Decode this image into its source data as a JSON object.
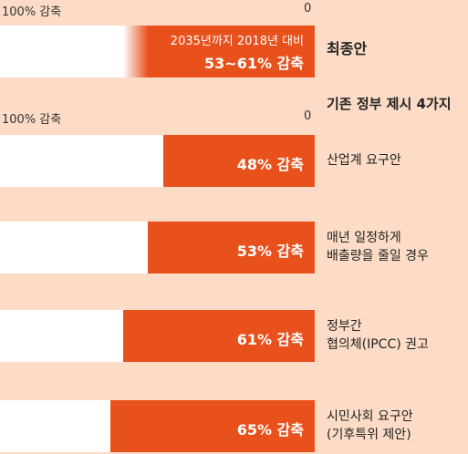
{
  "chart_data": {
    "type": "bar",
    "orientation": "horizontal",
    "unit": "%",
    "axis": {
      "min_label": "100% 감축",
      "max_label": "0"
    },
    "section_heading": "기존 정부 제시 4가지",
    "header": {
      "label": "최종안",
      "subtitle": "2035년까지 2018년 대비",
      "value_label": "53~61% 감축",
      "range": [
        53,
        61
      ]
    },
    "bars": [
      {
        "label_lines": [
          "산업계 요구안"
        ],
        "value": 48,
        "value_label": "48% 감축"
      },
      {
        "label_lines": [
          "매년 일정하게",
          "배출량을 줄일 경우"
        ],
        "value": 53,
        "value_label": "53% 감축"
      },
      {
        "label_lines": [
          "정부간",
          "협의체(IPCC) 권고"
        ],
        "value": 61,
        "value_label": "61% 감축"
      },
      {
        "label_lines": [
          "시민사회 요구안",
          "(기후특위 제안)"
        ],
        "value": 65,
        "value_label": "65% 감축"
      }
    ],
    "colors": {
      "bar": "#e8501c",
      "track": "#ffffff",
      "background": "#fcdcc6"
    }
  }
}
